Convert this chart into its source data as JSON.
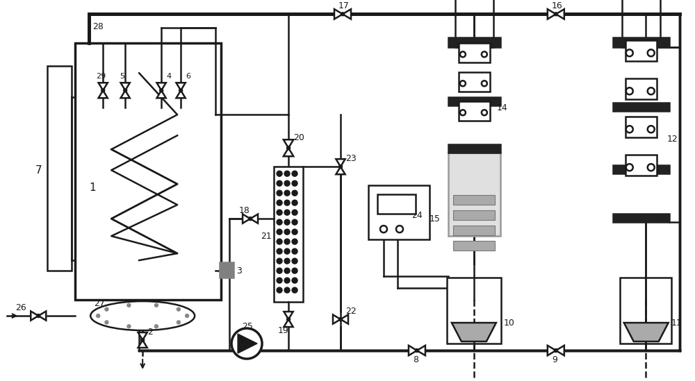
{
  "bg_color": "#ffffff",
  "line_color": "#1a1a1a",
  "lw": 1.8,
  "fig_width": 10.0,
  "fig_height": 5.49
}
